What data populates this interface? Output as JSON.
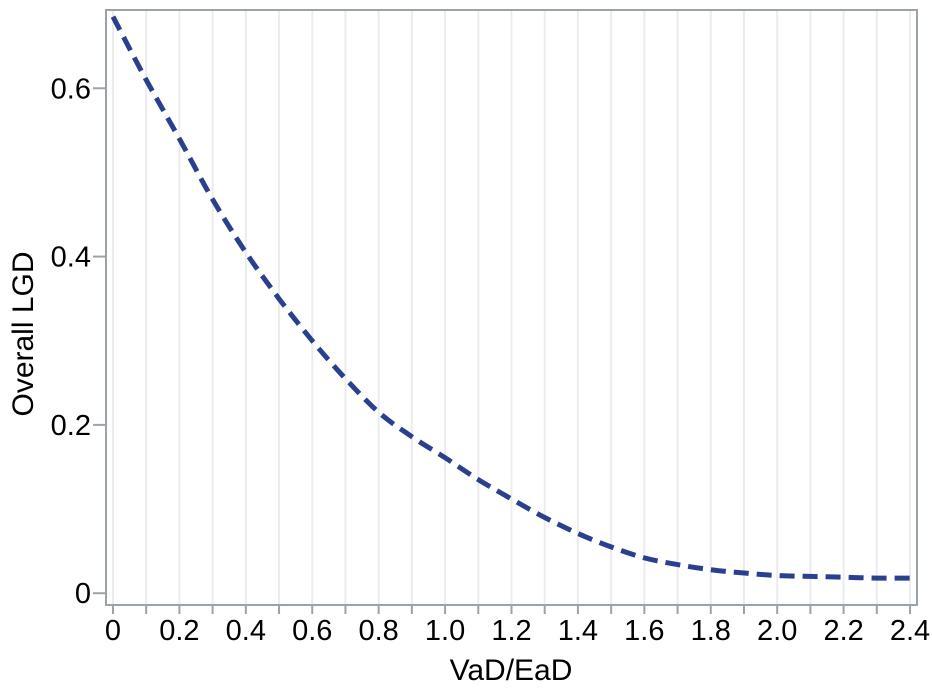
{
  "figure": {
    "background_color": "#ffffff",
    "frame_color": "#9ba3aa",
    "gridline_color": "#ececec",
    "text_color": "#000000"
  },
  "chart_data": {
    "type": "line",
    "title": "",
    "xlabel": "VaD/EaD",
    "ylabel": "Overall LGD",
    "xlim": [
      -0.021,
      2.421
    ],
    "ylim": [
      -0.014,
      0.693
    ],
    "grid": {
      "vertical": true,
      "horizontal": false,
      "positions": [
        0,
        0.1,
        0.2,
        0.3,
        0.4,
        0.5,
        0.6,
        0.7,
        0.8,
        0.9,
        1.0,
        1.1,
        1.2,
        1.3,
        1.4,
        1.5,
        1.6,
        1.7,
        1.8,
        1.9,
        2.0,
        2.1,
        2.2,
        2.3,
        2.4
      ]
    },
    "x_ticks_minor": [
      0,
      0.1,
      0.2,
      0.3,
      0.4,
      0.5,
      0.6,
      0.7,
      0.8,
      0.9,
      1.0,
      1.1,
      1.2,
      1.3,
      1.4,
      1.5,
      1.6,
      1.7,
      1.8,
      1.9,
      2.0,
      2.1,
      2.2,
      2.3,
      2.4
    ],
    "x_tick_labels": {
      "values": [
        0,
        0.2,
        0.4,
        0.6,
        0.8,
        1.0,
        1.2,
        1.4,
        1.6,
        1.8,
        2.0,
        2.2,
        2.4
      ],
      "labels": [
        "0",
        "0.2",
        "0.4",
        "0.6",
        "0.8",
        "1.0",
        "1.2",
        "1.4",
        "1.6",
        "1.8",
        "2.0",
        "2.2",
        "2.4"
      ]
    },
    "y_tick_labels": {
      "values": [
        0,
        0.2,
        0.4,
        0.6
      ],
      "labels": [
        "0",
        "0.2",
        "0.4",
        "0.6"
      ]
    },
    "legend": "none",
    "series": [
      {
        "name": "Overall LGD",
        "style": "dashed",
        "color": "#2b3f8f",
        "line_width": 5,
        "dash_pattern": [
          15,
          8
        ],
        "x": [
          0.0,
          0.1,
          0.2,
          0.3,
          0.4,
          0.5,
          0.6,
          0.7,
          0.8,
          0.9,
          1.0,
          1.1,
          1.2,
          1.3,
          1.4,
          1.5,
          1.6,
          1.7,
          1.8,
          1.9,
          2.0,
          2.1,
          2.2,
          2.3,
          2.4
        ],
        "y": [
          0.685,
          0.61,
          0.54,
          0.468,
          0.405,
          0.35,
          0.3,
          0.255,
          0.215,
          0.186,
          0.161,
          0.135,
          0.112,
          0.09,
          0.071,
          0.055,
          0.042,
          0.034,
          0.028,
          0.024,
          0.021,
          0.02,
          0.019,
          0.018,
          0.018
        ]
      }
    ]
  }
}
